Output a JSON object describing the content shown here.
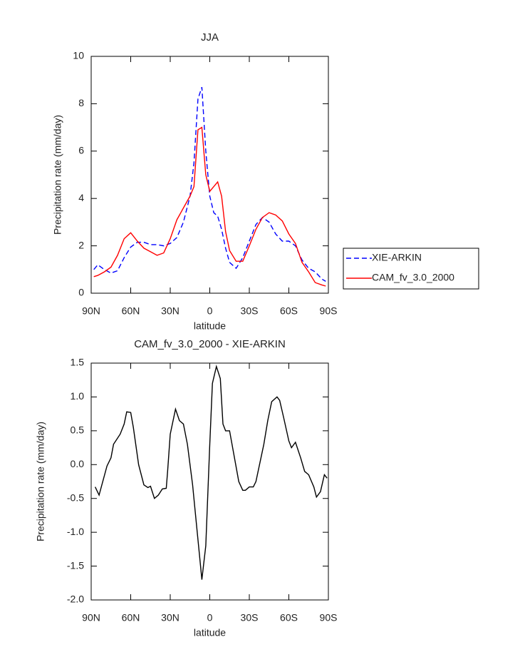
{
  "chart_data": [
    {
      "type": "line",
      "title": "JJA",
      "xlabel": "latitude",
      "ylabel": "Precipitation rate (mm/day)",
      "x": [
        88,
        85,
        80,
        75,
        70,
        65,
        60,
        55,
        50,
        45,
        40,
        35,
        30,
        25,
        20,
        15,
        12,
        9,
        6,
        3,
        0,
        -3,
        -6,
        -9,
        -12,
        -15,
        -20,
        -25,
        -30,
        -35,
        -40,
        -45,
        -50,
        -55,
        -60,
        -65,
        -70,
        -75,
        -80,
        -85,
        -88
      ],
      "xlim": [
        90,
        -90
      ],
      "xticks": [
        {
          "value": 90,
          "label": "90N"
        },
        {
          "value": 60,
          "label": "60N"
        },
        {
          "value": 30,
          "label": "30N"
        },
        0,
        {
          "value": -30,
          "label": "30S"
        },
        {
          "value": -60,
          "label": "60S"
        },
        {
          "value": -90,
          "label": "90S"
        }
      ],
      "ylim": [
        0,
        10
      ],
      "yticks": [
        0,
        2,
        4,
        6,
        8,
        10
      ],
      "legend": "right",
      "series": [
        {
          "name": "XIE-ARKIN",
          "color": "#0000ff",
          "linestyle": "dashed",
          "values": [
            1.0,
            1.2,
            1.0,
            0.85,
            0.95,
            1.5,
            1.95,
            2.15,
            2.15,
            2.05,
            2.05,
            2.0,
            2.1,
            2.35,
            3.0,
            4.1,
            5.5,
            8.2,
            8.7,
            6.0,
            4.1,
            3.4,
            3.25,
            2.7,
            1.9,
            1.3,
            1.05,
            1.5,
            2.2,
            2.9,
            3.2,
            3.0,
            2.5,
            2.2,
            2.2,
            2.0,
            1.4,
            1.05,
            0.9,
            0.6,
            0.5
          ]
        },
        {
          "name": "CAM_fv_3.0_2000",
          "color": "#ff0000",
          "linestyle": "solid",
          "values": [
            0.7,
            0.75,
            0.9,
            1.1,
            1.6,
            2.3,
            2.55,
            2.2,
            1.9,
            1.75,
            1.6,
            1.7,
            2.3,
            3.1,
            3.6,
            4.1,
            4.5,
            6.9,
            7.0,
            5.0,
            4.3,
            4.5,
            4.7,
            4.1,
            2.6,
            1.8,
            1.35,
            1.35,
            2.0,
            2.7,
            3.2,
            3.4,
            3.3,
            3.05,
            2.5,
            2.1,
            1.3,
            0.9,
            0.45,
            0.35,
            0.3
          ]
        }
      ]
    },
    {
      "type": "line",
      "title": "CAM_fv_3.0_2000 - XIE-ARKIN",
      "xlabel": "latitude",
      "ylabel": "Precipitation rate (mm/day)",
      "x": [
        87,
        84,
        78,
        75,
        73,
        68,
        65,
        63,
        60,
        58,
        54,
        50,
        47,
        45,
        42,
        39,
        36,
        33,
        32,
        30,
        26,
        23,
        20,
        17,
        13,
        11,
        8,
        6,
        3,
        0,
        -2,
        -5,
        -8,
        -10,
        -12,
        -15,
        -22,
        -25,
        -27,
        -30,
        -33,
        -35,
        -41,
        -44,
        -47,
        -51,
        -53,
        -56,
        -60,
        -62,
        -65,
        -69,
        -72,
        -75,
        -79,
        -81,
        -84,
        -87,
        -89
      ],
      "xlim": [
        90,
        -90
      ],
      "xticks": [
        {
          "value": 90,
          "label": "90N"
        },
        {
          "value": 60,
          "label": "60N"
        },
        {
          "value": 30,
          "label": "30N"
        },
        0,
        {
          "value": -30,
          "label": "30S"
        },
        {
          "value": -60,
          "label": "60S"
        },
        {
          "value": -90,
          "label": "90S"
        }
      ],
      "ylim": [
        -2,
        1.5
      ],
      "yticks": [
        {
          "value": -2,
          "label": "-2.0"
        },
        -1.5,
        {
          "value": -1,
          "label": "-1.0"
        },
        -0.5,
        {
          "value": 0,
          "label": "0.0"
        },
        0.5,
        {
          "value": 1,
          "label": "1.0"
        },
        1.5
      ],
      "color": "#000000",
      "values": [
        -0.33,
        -0.45,
        -0.02,
        0.1,
        0.3,
        0.45,
        0.6,
        0.78,
        0.77,
        0.55,
        0.0,
        -0.3,
        -0.34,
        -0.32,
        -0.5,
        -0.45,
        -0.36,
        -0.35,
        -0.1,
        0.45,
        0.82,
        0.65,
        0.6,
        0.3,
        -0.3,
        -0.7,
        -1.3,
        -1.7,
        -1.2,
        0.3,
        1.2,
        1.45,
        1.27,
        0.6,
        0.5,
        0.5,
        -0.25,
        -0.38,
        -0.38,
        -0.33,
        -0.33,
        -0.25,
        0.3,
        0.65,
        0.93,
        1.0,
        0.95,
        0.7,
        0.35,
        0.25,
        0.33,
        0.1,
        -0.1,
        -0.15,
        -0.33,
        -0.48,
        -0.4,
        -0.15,
        -0.2
      ]
    }
  ]
}
